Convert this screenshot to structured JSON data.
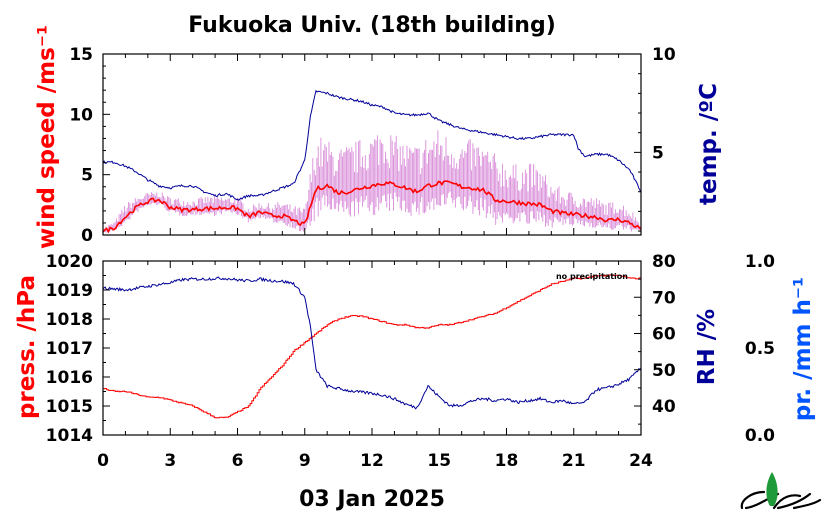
{
  "title": "Fukuoka Univ. (18th building)",
  "date": "03 Jan 2025",
  "note": "no precipitation",
  "colors": {
    "wind": "#ff0000",
    "gust": "#cc66cc",
    "temperature": "#000099",
    "pressure": "#ff0000",
    "humidity": "#000099",
    "precipitation": "#0055ff"
  },
  "chart_data": [
    {
      "type": "line",
      "panel": "top",
      "xlim": [
        0,
        24
      ],
      "x_ticks": [
        "0",
        "3",
        "6",
        "9",
        "12",
        "15",
        "18",
        "21",
        "24"
      ],
      "y_left": {
        "label": "wind speed /ms⁻¹",
        "ylim": [
          0,
          15
        ],
        "ticks": [
          "0",
          "5",
          "10",
          "15"
        ]
      },
      "y_right": {
        "label": "temp. /ºC",
        "ylim": [
          0.8,
          10
        ],
        "ticks": [
          "5",
          "10"
        ]
      },
      "series": [
        {
          "axis": "left",
          "style": "mean",
          "x": [
            0,
            0.5,
            1,
            1.5,
            2,
            2.5,
            3,
            3.5,
            4,
            4.5,
            5,
            5.5,
            6,
            6.5,
            7,
            7.5,
            8,
            8.5,
            9,
            9.5,
            10,
            10.5,
            11,
            11.5,
            12,
            12.5,
            13,
            13.5,
            14,
            14.5,
            15,
            15.5,
            16,
            16.5,
            17,
            17.5,
            18,
            18.5,
            19,
            19.5,
            20,
            20.5,
            21,
            21.5,
            22,
            22.5,
            23,
            23.5,
            24
          ],
          "y": [
            0.3,
            0.6,
            1.5,
            2.3,
            2.8,
            2.9,
            2.3,
            2.1,
            2.1,
            2.2,
            2.2,
            2.3,
            2.2,
            1.5,
            1.9,
            1.6,
            1.6,
            1.2,
            0.8,
            3.8,
            4.1,
            3.5,
            3.6,
            3.9,
            4.1,
            4.3,
            4.2,
            3.9,
            3.6,
            4.1,
            4.3,
            4.3,
            4.0,
            3.9,
            3.7,
            2.9,
            2.8,
            2.7,
            2.6,
            2.5,
            2.0,
            1.8,
            1.7,
            1.6,
            1.5,
            1.2,
            1.3,
            1.0,
            0.5
          ]
        },
        {
          "axis": "left",
          "style": "gust",
          "x": [
            0,
            0.5,
            1,
            1.5,
            2,
            2.5,
            3,
            3.5,
            4,
            4.5,
            5,
            5.5,
            6,
            6.5,
            7,
            7.5,
            8,
            8.5,
            9,
            9.5,
            10,
            10.5,
            11,
            11.5,
            12,
            12.5,
            13,
            13.5,
            14,
            14.5,
            15,
            15.5,
            16,
            16.5,
            17,
            17.5,
            18,
            18.5,
            19,
            19.5,
            20,
            20.5,
            21,
            21.5,
            22,
            22.5,
            23,
            23.5,
            24
          ],
          "y": [
            0.6,
            1.0,
            2.4,
            3.0,
            3.4,
            3.5,
            3.0,
            2.9,
            2.8,
            3.0,
            3.1,
            3.0,
            3.0,
            2.2,
            2.6,
            2.4,
            2.6,
            2.2,
            2.0,
            7.5,
            7.2,
            6.5,
            6.8,
            7.2,
            7.6,
            8.4,
            7.5,
            7.0,
            6.8,
            7.6,
            8.0,
            7.4,
            7.0,
            7.2,
            6.8,
            6.0,
            5.6,
            5.2,
            5.4,
            5.0,
            4.0,
            3.4,
            3.2,
            3.0,
            2.8,
            2.4,
            2.6,
            2.0,
            1.0
          ]
        },
        {
          "axis": "right",
          "style": "temperature",
          "x": [
            0,
            0.5,
            1,
            1.5,
            2,
            2.5,
            3,
            3.5,
            4,
            4.5,
            5,
            5.5,
            6,
            6.5,
            7,
            7.5,
            8,
            8.5,
            9,
            9.25,
            9.5,
            10,
            10.5,
            11,
            11.5,
            12,
            12.5,
            13,
            13.5,
            14,
            14.5,
            15,
            15.5,
            16,
            16.5,
            17,
            17.5,
            18,
            18.5,
            19,
            19.5,
            20,
            20.5,
            21,
            21.2,
            21.5,
            22,
            22.5,
            23,
            23.5,
            24
          ],
          "y": [
            4.5,
            4.5,
            4.3,
            4.0,
            3.6,
            3.3,
            3.2,
            3.3,
            3.3,
            3.0,
            2.8,
            2.9,
            2.6,
            2.8,
            2.8,
            3.0,
            3.2,
            3.4,
            4.6,
            6.8,
            8.1,
            8.0,
            7.8,
            7.7,
            7.6,
            7.4,
            7.3,
            7.0,
            6.9,
            6.9,
            7.0,
            6.6,
            6.4,
            6.2,
            6.1,
            6.0,
            5.9,
            5.8,
            5.7,
            5.7,
            5.8,
            5.9,
            5.9,
            5.9,
            5.2,
            4.8,
            4.9,
            4.9,
            4.6,
            4.1,
            3.0
          ]
        }
      ]
    },
    {
      "type": "line",
      "panel": "bottom",
      "xlim": [
        0,
        24
      ],
      "x_ticks": [
        "0",
        "3",
        "6",
        "9",
        "12",
        "15",
        "18",
        "21",
        "24"
      ],
      "y_left": {
        "label": "press. /hPa",
        "ylim": [
          1014,
          1020
        ],
        "ticks": [
          "1014",
          "1015",
          "1016",
          "1017",
          "1018",
          "1019",
          "1020"
        ]
      },
      "y_right": {
        "label": "RH /%",
        "ylim": [
          32,
          80
        ],
        "ticks": [
          "40",
          "50",
          "60",
          "70",
          "80"
        ]
      },
      "y_far_right": {
        "label": "pr. /mm h⁻¹",
        "ylim": [
          0,
          1
        ],
        "ticks": [
          "0.0",
          "0.5",
          "1.0"
        ]
      },
      "series": [
        {
          "axis": "left",
          "style": "pressure",
          "x": [
            0,
            0.5,
            1,
            1.5,
            2,
            2.5,
            3,
            3.5,
            4,
            4.5,
            5,
            5.5,
            6,
            6.5,
            7,
            7.5,
            8,
            8.5,
            9,
            9.5,
            10,
            10.5,
            11,
            11.5,
            12,
            12.5,
            13,
            13.5,
            14,
            14.5,
            15,
            15.5,
            16,
            16.5,
            17,
            17.5,
            18,
            18.5,
            19,
            19.5,
            20,
            20.5,
            21,
            21.5,
            22,
            22.5,
            23,
            23.5,
            24
          ],
          "y": [
            1015.6,
            1015.5,
            1015.5,
            1015.4,
            1015.3,
            1015.3,
            1015.2,
            1015.1,
            1015.0,
            1014.8,
            1014.6,
            1014.6,
            1014.8,
            1015.0,
            1015.6,
            1016.0,
            1016.4,
            1016.9,
            1017.2,
            1017.5,
            1017.8,
            1018.0,
            1018.1,
            1018.1,
            1018.0,
            1017.9,
            1017.8,
            1017.8,
            1017.7,
            1017.7,
            1017.8,
            1017.8,
            1017.9,
            1018.0,
            1018.1,
            1018.2,
            1018.4,
            1018.6,
            1018.8,
            1019.0,
            1019.2,
            1019.3,
            1019.4,
            1019.4,
            1019.5,
            1019.5,
            1019.5,
            1019.4,
            1019.4
          ]
        },
        {
          "axis": "right",
          "style": "humidity",
          "x": [
            0,
            0.5,
            1,
            1.5,
            2,
            2.5,
            3,
            3.5,
            4,
            4.5,
            5,
            5.5,
            6,
            6.5,
            7,
            7.5,
            8,
            8.5,
            9,
            9.25,
            9.5,
            10,
            10.5,
            11,
            11.5,
            12,
            12.5,
            13,
            13.5,
            14,
            14.5,
            15,
            15.5,
            16,
            16.5,
            17,
            17.5,
            18,
            18.5,
            19,
            19.5,
            20,
            20.5,
            21,
            21.5,
            22,
            22.5,
            23,
            23.5,
            24
          ],
          "y": [
            72.5,
            72.3,
            72.0,
            72.5,
            73.0,
            73.5,
            74.0,
            74.8,
            75.0,
            75.0,
            75.2,
            75.2,
            74.8,
            74.5,
            75.0,
            74.6,
            74.4,
            73.8,
            70.0,
            62.0,
            50.0,
            45.5,
            44.8,
            44.2,
            43.8,
            43.5,
            43.0,
            42.0,
            40.5,
            39.5,
            45.5,
            42.5,
            40.0,
            40.3,
            41.5,
            42.0,
            41.5,
            42.0,
            41.0,
            41.5,
            42.0,
            41.0,
            41.5,
            40.5,
            41.0,
            44.5,
            45.0,
            46.0,
            47.5,
            50.5
          ]
        },
        {
          "axis": "far_right",
          "style": "precipitation",
          "x": [],
          "y": []
        }
      ]
    }
  ]
}
